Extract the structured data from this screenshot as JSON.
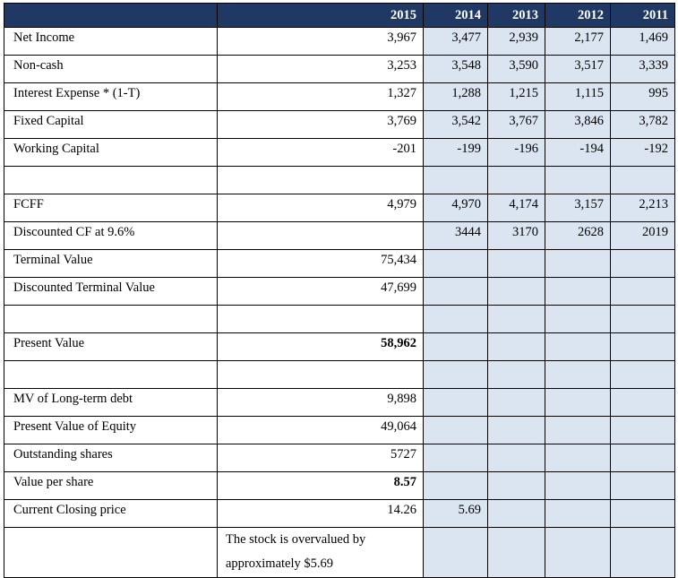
{
  "table": {
    "headers": [
      "",
      "2015",
      "2014",
      "2013",
      "2012",
      "2011"
    ],
    "rows": [
      {
        "label": "Net Income",
        "values": [
          "3,967",
          "3,477",
          "2,939",
          "2,177",
          "1,469"
        ]
      },
      {
        "label": "Non-cash",
        "values": [
          "3,253",
          "3,548",
          "3,590",
          "3,517",
          "3,339"
        ]
      },
      {
        "label": "Interest Expense * (1-T)",
        "values": [
          "1,327",
          "1,288",
          "1,215",
          "1,115",
          "995"
        ]
      },
      {
        "label": "Fixed Capital",
        "values": [
          "3,769",
          "3,542",
          "3,767",
          "3,846",
          "3,782"
        ]
      },
      {
        "label": "Working Capital",
        "values": [
          "-201",
          "-199",
          "-196",
          "-194",
          "-192"
        ]
      },
      {
        "label": "",
        "values": [
          "",
          "",
          "",
          "",
          ""
        ]
      },
      {
        "label": "FCFF",
        "values": [
          "4,979",
          "4,970",
          "4,174",
          "3,157",
          "2,213"
        ]
      },
      {
        "label": "Discounted CF at 9.6%",
        "values": [
          "",
          "3444",
          "3170",
          "2628",
          "2019"
        ]
      },
      {
        "label": "Terminal Value",
        "values": [
          "75,434",
          "",
          "",
          "",
          ""
        ]
      },
      {
        "label": "Discounted Terminal Value",
        "values": [
          "47,699",
          "",
          "",
          "",
          ""
        ]
      },
      {
        "label": "",
        "values": [
          "",
          "",
          "",
          "",
          ""
        ]
      },
      {
        "label": "Present Value",
        "values": [
          "58,962",
          "",
          "",
          "",
          ""
        ],
        "bold_value": true
      },
      {
        "label": "",
        "values": [
          "",
          "",
          "",
          "",
          ""
        ]
      },
      {
        "label": "MV of Long-term debt",
        "values": [
          "9,898",
          "",
          "",
          "",
          ""
        ]
      },
      {
        "label": "Present Value of Equity",
        "values": [
          "49,064",
          "",
          "",
          "",
          ""
        ]
      },
      {
        "label": "Outstanding shares",
        "values": [
          "5727",
          "",
          "",
          "",
          ""
        ]
      },
      {
        "label": "Value per share",
        "values": [
          "8.57",
          "",
          "",
          "",
          ""
        ],
        "bold_value": true
      },
      {
        "label": "Current Closing price",
        "values": [
          "14.26",
          "5.69",
          "",
          "",
          ""
        ]
      }
    ],
    "note": "The stock is overvalued by approximately $5.69"
  },
  "colors": {
    "header_bg": "#1f3864",
    "cell_shade": "#dbe5f1",
    "header_text": "#ffffff"
  }
}
